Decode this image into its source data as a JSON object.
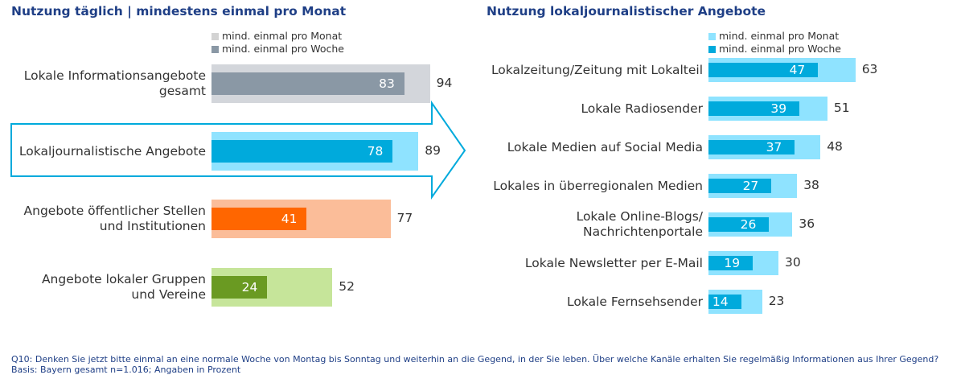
{
  "colors": {
    "title": "#1F3F86",
    "legend_left_monthly": "#D3D3D3",
    "legend_left_weekly": "#8A98A5",
    "legend_right_monthly": "#8FE3FF",
    "legend_right_weekly": "#00AADC",
    "arrow_outline": "#00AADC"
  },
  "chart_data": [
    {
      "type": "bar",
      "orientation": "horizontal",
      "title": "Nutzung täglich | mindestens einmal pro Monat",
      "legend": [
        "mind. einmal pro Monat",
        "mind. einmal pro Woche"
      ],
      "categories": [
        "Lokale Informationsangebote gesamt",
        "Lokaljournalistische Angebote",
        "Angebote öffentlicher Stellen und Institutionen",
        "Angebote lokaler Gruppen und Vereine"
      ],
      "series": [
        {
          "name": "mind. einmal pro Monat",
          "values": [
            94,
            89,
            77,
            52
          ],
          "colors": [
            "#D3D6DB",
            "#8FE3FF",
            "#FBBD99",
            "#C6E59A"
          ]
        },
        {
          "name": "mind. einmal pro Woche",
          "values": [
            83,
            78,
            41,
            24
          ],
          "colors": [
            "#8A98A5",
            "#00AADC",
            "#FF6600",
            "#6A9A22"
          ]
        }
      ],
      "xlim": [
        0,
        100
      ]
    },
    {
      "type": "bar",
      "orientation": "horizontal",
      "title": "Nutzung lokaljournalistischer Angebote",
      "legend": [
        "mind. einmal pro Monat",
        "mind. einmal pro Woche"
      ],
      "categories": [
        "Lokalzeitung/Zeitung mit Lokalteil",
        "Lokale Radiosender",
        "Lokale Medien auf Social Media",
        "Lokales in überregionalen Medien",
        "Lokale Online-Blogs/ Nachrichtenportale",
        "Lokale Newsletter per E-Mail",
        "Lokale Fernsehsender"
      ],
      "series": [
        {
          "name": "mind. einmal pro Monat",
          "values": [
            63,
            51,
            48,
            38,
            36,
            30,
            23
          ],
          "color": "#8FE3FF"
        },
        {
          "name": "mind. einmal pro Woche",
          "values": [
            47,
            39,
            37,
            27,
            26,
            19,
            14
          ],
          "color": "#00AADC"
        }
      ],
      "xlim": [
        0,
        100
      ]
    }
  ],
  "footnote": {
    "question": "Q10: Denken Sie jetzt bitte einmal an eine normale Woche von Montag bis Sonntag und weiterhin an die Gegend, in der Sie leben. Über welche Kanäle erhalten Sie regelmäßig Informationen aus Ihrer Gegend?",
    "basis": "Basis: Bayern gesamt n=1.016; Angaben in Prozent"
  }
}
